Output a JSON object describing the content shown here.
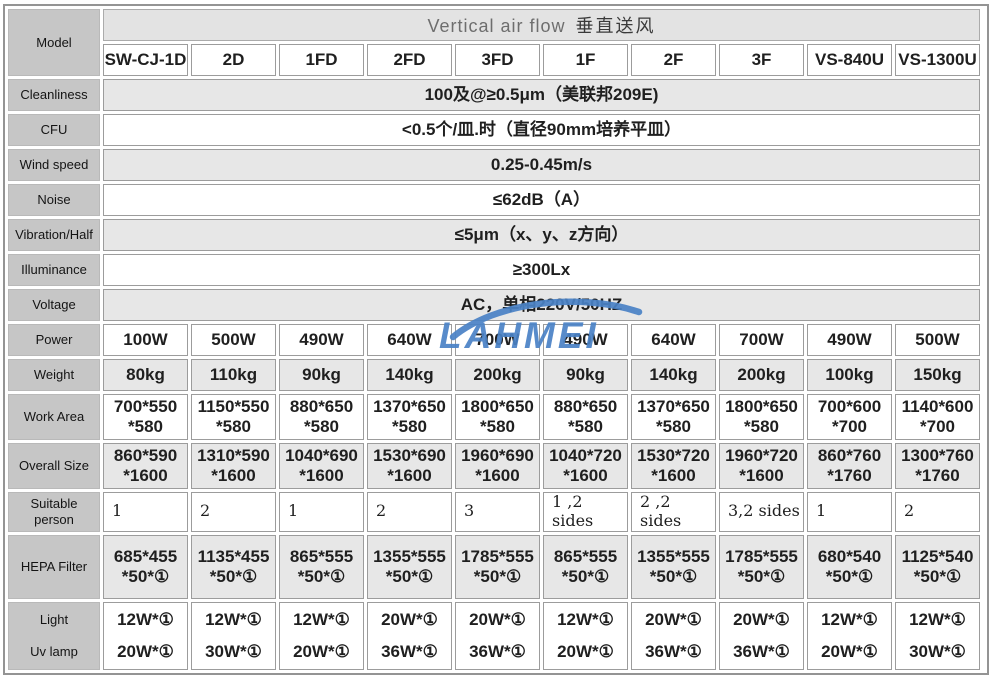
{
  "watermark": {
    "text": "LAHMEI",
    "color": "#4a82c6"
  },
  "table": {
    "model_label": "Model",
    "header": {
      "title_en": "Vertical air flow",
      "title_zh": "垂直送风"
    },
    "models": [
      "SW-CJ-1D",
      "2D",
      "1FD",
      "2FD",
      "3FD",
      "1F",
      "2F",
      "3F",
      "VS-840U",
      "VS-1300U"
    ],
    "rows": [
      {
        "label": "Cleanliness",
        "merged": true,
        "value": "100及@≥0.5μm（美联邦209E)"
      },
      {
        "label": "CFU",
        "merged": true,
        "value": "<0.5个/皿.时（直径90mm培养平皿）"
      },
      {
        "label": "Wind speed",
        "merged": true,
        "value": "0.25-0.45m/s"
      },
      {
        "label": "Noise",
        "merged": true,
        "value": "≤62dB（A）"
      },
      {
        "label": "Vibration/Half",
        "merged": true,
        "value": "≤5μm（x、y、z方向）"
      },
      {
        "label": "Illuminance",
        "merged": true,
        "value": "≥300Lx"
      },
      {
        "label": "Voltage",
        "merged": true,
        "value": "AC，单相220V/50HZ"
      },
      {
        "label": "Power",
        "cls": "std",
        "values": [
          "100W",
          "500W",
          "490W",
          "640W",
          "700W",
          "490W",
          "640W",
          "700W",
          "490W",
          "500W"
        ]
      },
      {
        "label": "Weight",
        "cls": "std",
        "values": [
          "80kg",
          "110kg",
          "90kg",
          "140kg",
          "200kg",
          "90kg",
          "140kg",
          "200kg",
          "100kg",
          "150kg"
        ]
      },
      {
        "label": "Work Area",
        "cls": "tall",
        "values": [
          "700*550\n*580",
          "1150*550\n*580",
          "880*650\n*580",
          "1370*650\n*580",
          "1800*650\n*580",
          "880*650\n*580",
          "1370*650\n*580",
          "1800*650\n*580",
          "700*600\n*700",
          "1140*600\n*700"
        ]
      },
      {
        "label": "Overall Size",
        "cls": "tall",
        "values": [
          "860*590\n*1600",
          "1310*590\n*1600",
          "1040*690\n*1600",
          "1530*690\n*1600",
          "1960*690\n*1600",
          "1040*720\n*1600",
          "1530*720\n*1600",
          "1960*720\n*1600",
          "860*760\n*1760",
          "1300*760\n*1760"
        ]
      },
      {
        "label": "Suitable\nperson",
        "cls": "suit",
        "values": [
          "1",
          "2",
          "1",
          "2",
          "3",
          "1 ,2 sides",
          "2 ,2 sides",
          "3,2 sides",
          "1",
          "2"
        ]
      },
      {
        "label": "HEPA Filter",
        "cls": "hepa",
        "values": [
          "685*455\n*50*①",
          "1135*455\n*50*①",
          "865*555\n*50*①",
          "1355*555\n*50*①",
          "1785*555\n*50*①",
          "865*555\n*50*①",
          "1355*555\n*50*①",
          "1785*555\n*50*①",
          "680*540\n*50*①",
          "1125*540\n*50*①"
        ]
      },
      {
        "label": "Light\nUv lamp",
        "cls": "lamp",
        "values": [
          "12W*①\n20W*①",
          "12W*①\n30W*①",
          "12W*①\n20W*①",
          "20W*①\n36W*①",
          "20W*①\n36W*①",
          "12W*①\n20W*①",
          "20W*①\n36W*①",
          "20W*①\n36W*①",
          "12W*①\n20W*①",
          "12W*①\n30W*①"
        ]
      }
    ]
  }
}
